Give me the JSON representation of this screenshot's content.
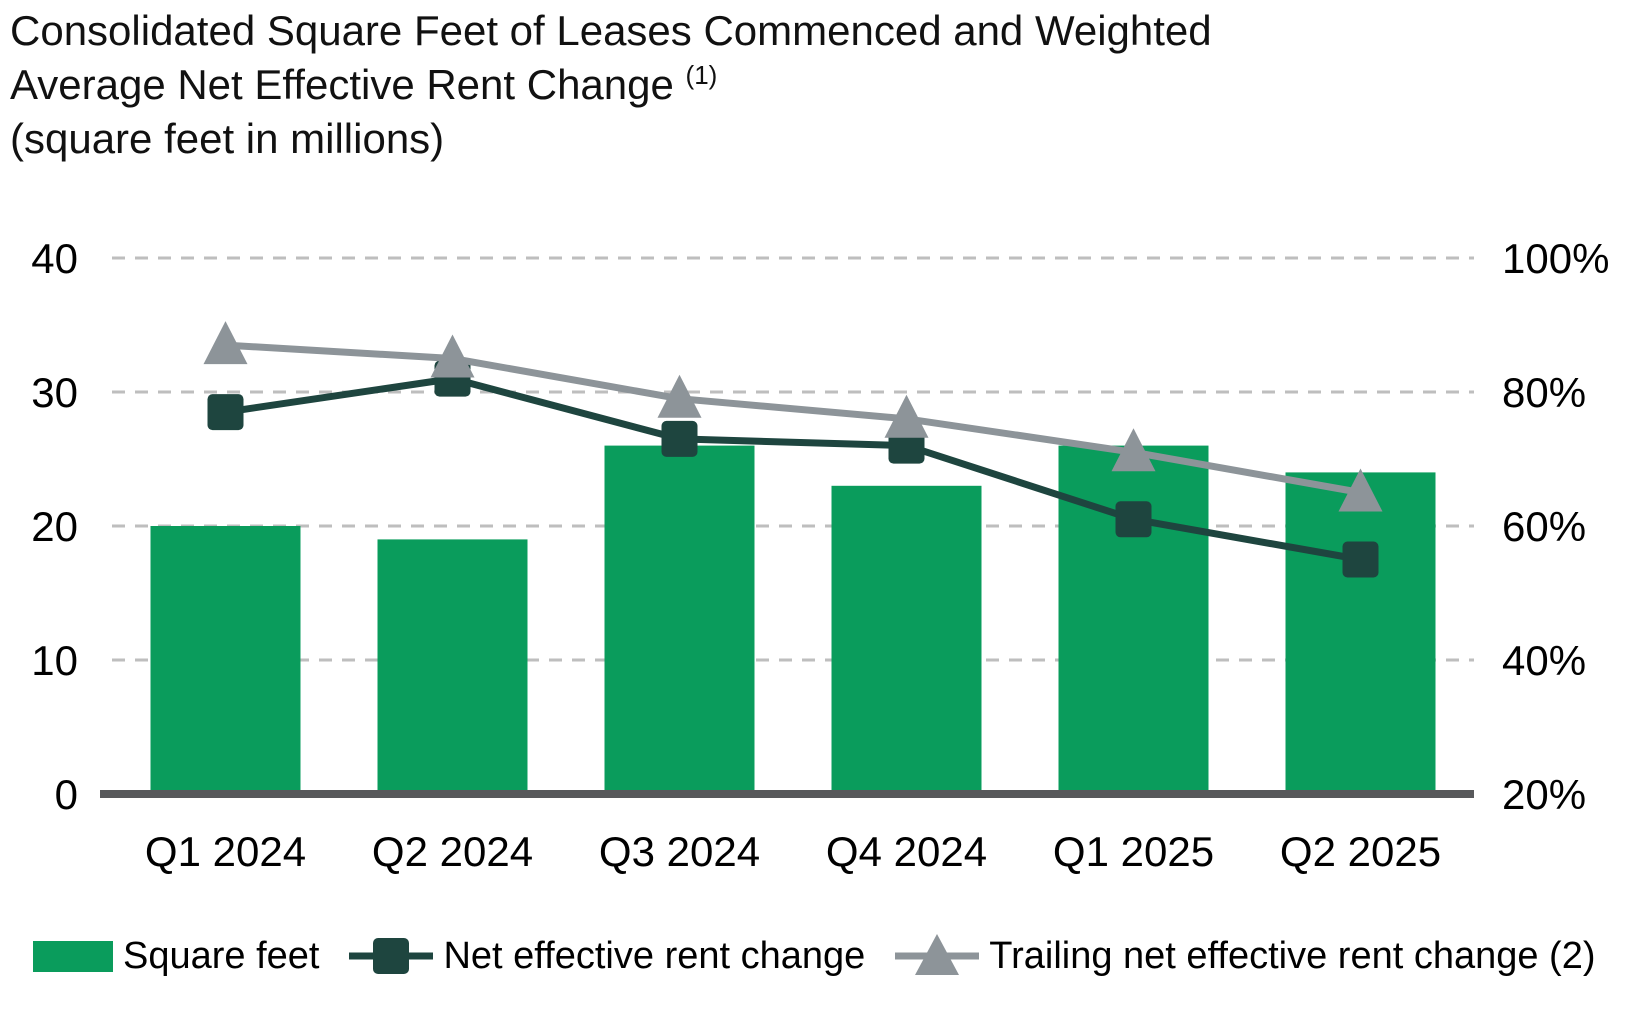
{
  "title": {
    "line1": "Consolidated Square Feet of Leases Commenced and Weighted",
    "line2": "Average Net Effective Rent Change",
    "superscript": "(1)",
    "subtitle": "(square feet in millions)"
  },
  "colors": {
    "bar_green": "#0A9C5C",
    "net_line_dark": "#1E453F",
    "trailing_line_gray": "#8D9499",
    "axis_line": "#58595B",
    "gridline": "#BEBEBE",
    "text": "#000000"
  },
  "chart_data": {
    "type": "bar",
    "subtype": "combo bar + two lines",
    "title": "Consolidated Square Feet of Leases Commenced and Weighted Average Net Effective Rent Change (1)",
    "subtitle": "(square feet in millions)",
    "categories": [
      "Q1 2024",
      "Q2 2024",
      "Q3 2024",
      "Q4 2024",
      "Q1 2025",
      "Q2 2025"
    ],
    "series": [
      {
        "name": "Square feet",
        "type": "bar",
        "axis": "left",
        "marker": "rect",
        "values": [
          20,
          19,
          26,
          23,
          26,
          24
        ]
      },
      {
        "name": "Net effective rent change",
        "type": "line",
        "axis": "right",
        "marker": "square",
        "values": [
          77,
          82,
          73,
          72,
          61,
          55
        ]
      },
      {
        "name": "Trailing net effective rent change (2)",
        "type": "line",
        "axis": "right",
        "marker": "triangle",
        "values": [
          87,
          85,
          79,
          76,
          71,
          65
        ]
      }
    ],
    "left_axis": {
      "label": "square feet in millions",
      "min": 0,
      "max": 40,
      "ticks": [
        40,
        30,
        20,
        10,
        0
      ]
    },
    "right_axis": {
      "label": "percent",
      "min": 20,
      "max": 100,
      "ticks": [
        "100%",
        "80%",
        "60%",
        "40%",
        "20%"
      ],
      "tick_values": [
        100,
        80,
        60,
        40,
        20
      ]
    },
    "grid": "horizontal dashed gridlines",
    "legend_position": "bottom"
  }
}
